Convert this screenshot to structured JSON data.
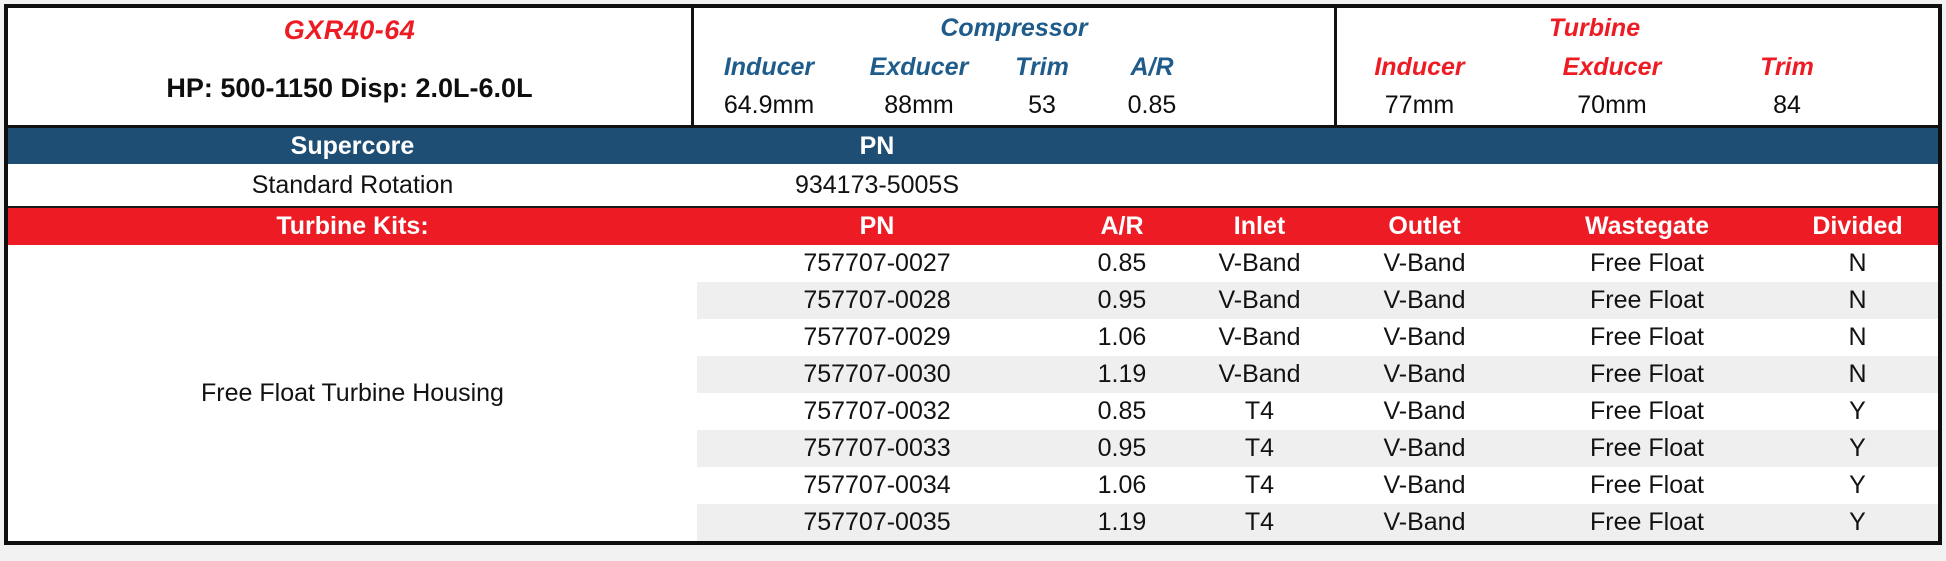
{
  "colors": {
    "blue_bar": "#1f4e74",
    "blue_text": "#1f5c8b",
    "red": "#ed1c24",
    "stripe": "#efefef",
    "page_bg": "#f2f2f3"
  },
  "model": {
    "name": "GXR40-64",
    "subtitle": "HP: 500-1150 Disp: 2.0L-6.0L"
  },
  "compressor": {
    "title": "Compressor",
    "columns": [
      "Inducer",
      "Exducer",
      "Trim",
      "A/R"
    ],
    "values": [
      "64.9mm",
      "88mm",
      "53",
      "0.85"
    ]
  },
  "turbine": {
    "title": "Turbine",
    "columns": [
      "Inducer",
      "Exducer",
      "Trim"
    ],
    "values": [
      "77mm",
      "70mm",
      "84"
    ]
  },
  "supercore": {
    "label": "Supercore",
    "pn_header": "PN",
    "rows": [
      {
        "label": "Standard Rotation",
        "pn": "934173-5005S"
      }
    ]
  },
  "turbine_kits": {
    "label": "Turbine Kits:",
    "columns": [
      "PN",
      "A/R",
      "Inlet",
      "Outlet",
      "Wastegate",
      "Divided"
    ],
    "housing_label": "Free Float Turbine Housing",
    "rows": [
      [
        "757707-0027",
        "0.85",
        "V-Band",
        "V-Band",
        "Free Float",
        "N"
      ],
      [
        "757707-0028",
        "0.95",
        "V-Band",
        "V-Band",
        "Free Float",
        "N"
      ],
      [
        "757707-0029",
        "1.06",
        "V-Band",
        "V-Band",
        "Free Float",
        "N"
      ],
      [
        "757707-0030",
        "1.19",
        "V-Band",
        "V-Band",
        "Free Float",
        "N"
      ],
      [
        "757707-0032",
        "0.85",
        "T4",
        "V-Band",
        "Free Float",
        "Y"
      ],
      [
        "757707-0033",
        "0.95",
        "T4",
        "V-Band",
        "Free Float",
        "Y"
      ],
      [
        "757707-0034",
        "1.06",
        "T4",
        "V-Band",
        "Free Float",
        "Y"
      ],
      [
        "757707-0035",
        "1.19",
        "T4",
        "V-Band",
        "Free Float",
        "Y"
      ]
    ]
  }
}
